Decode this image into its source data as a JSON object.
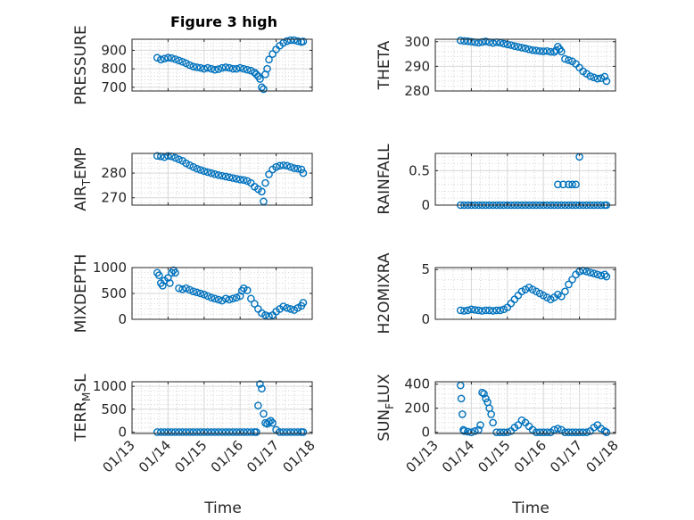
{
  "figure": {
    "title": "Figure 3 high",
    "xlabel": "Time",
    "marker_color": "#0072BD",
    "x_tick_labels": [
      "01/13",
      "01/14",
      "01/15",
      "01/16",
      "01/17",
      "01/18"
    ],
    "x_tick_days": [
      13,
      14,
      15,
      16,
      17,
      18
    ]
  },
  "chart_data": [
    {
      "type": "scatter",
      "ylabel": "PRESSURE",
      "ylabel_sub": "",
      "ylim": [
        680,
        960
      ],
      "yticks": [
        700,
        800,
        900
      ],
      "xlim": [
        13,
        18
      ],
      "x": [
        13.7,
        13.8,
        13.9,
        14.0,
        14.1,
        14.2,
        14.3,
        14.4,
        14.5,
        14.6,
        14.7,
        14.8,
        14.9,
        15.0,
        15.1,
        15.2,
        15.3,
        15.4,
        15.5,
        15.6,
        15.7,
        15.8,
        15.9,
        16.0,
        16.1,
        16.2,
        16.3,
        16.4,
        16.45,
        16.5,
        16.55,
        16.6,
        16.65,
        16.7,
        16.75,
        16.8,
        16.9,
        17.0,
        17.1,
        17.2,
        17.3,
        17.4,
        17.5,
        17.6,
        17.7,
        17.75
      ],
      "y": [
        860,
        850,
        855,
        860,
        858,
        852,
        845,
        838,
        830,
        820,
        812,
        808,
        805,
        800,
        805,
        800,
        795,
        798,
        805,
        808,
        805,
        800,
        800,
        805,
        800,
        795,
        790,
        780,
        770,
        760,
        745,
        700,
        690,
        770,
        800,
        850,
        880,
        905,
        925,
        940,
        950,
        955,
        955,
        950,
        945,
        948
      ]
    },
    {
      "type": "scatter",
      "ylabel": "THETA",
      "ylabel_sub": "",
      "ylim": [
        280,
        301
      ],
      "yticks": [
        280,
        290,
        300
      ],
      "xlim": [
        13,
        18
      ],
      "x": [
        13.7,
        13.8,
        13.9,
        14.0,
        14.1,
        14.2,
        14.3,
        14.4,
        14.5,
        14.6,
        14.7,
        14.8,
        14.9,
        15.0,
        15.1,
        15.2,
        15.3,
        15.4,
        15.5,
        15.6,
        15.7,
        15.8,
        15.9,
        16.0,
        16.1,
        16.2,
        16.3,
        16.35,
        16.4,
        16.45,
        16.5,
        16.6,
        16.7,
        16.8,
        16.9,
        17.0,
        17.1,
        17.2,
        17.3,
        17.4,
        17.5,
        17.6,
        17.7,
        17.75
      ],
      "y": [
        300.5,
        300.3,
        300.2,
        300.0,
        299.8,
        299.6,
        299.9,
        300.1,
        299.8,
        299.5,
        299.8,
        299.6,
        299.2,
        298.9,
        298.6,
        298.2,
        297.9,
        297.6,
        297.3,
        296.9,
        296.6,
        296.4,
        296.2,
        296.1,
        296.2,
        295.9,
        295.8,
        296.5,
        298.0,
        297.0,
        296.0,
        293.0,
        292.5,
        292.0,
        291.0,
        289.5,
        288.0,
        287.0,
        286.0,
        285.5,
        285.0,
        285.2,
        285.8,
        284.0
      ]
    },
    {
      "type": "scatter",
      "ylabel": "AIR",
      "ylabel_sub": "T",
      "ylabel_suffix": "EMP",
      "ylim": [
        267,
        288
      ],
      "yticks": [
        270,
        280
      ],
      "xlim": [
        13,
        18
      ],
      "x": [
        13.7,
        13.8,
        13.9,
        14.0,
        14.1,
        14.2,
        14.3,
        14.4,
        14.5,
        14.6,
        14.7,
        14.8,
        14.9,
        15.0,
        15.1,
        15.2,
        15.3,
        15.4,
        15.5,
        15.6,
        15.7,
        15.8,
        15.9,
        16.0,
        16.1,
        16.2,
        16.3,
        16.4,
        16.5,
        16.6,
        16.65,
        16.7,
        16.8,
        16.9,
        17.0,
        17.1,
        17.2,
        17.3,
        17.4,
        17.5,
        17.6,
        17.7,
        17.75
      ],
      "y": [
        287.0,
        286.8,
        286.5,
        287.0,
        286.8,
        286.2,
        285.6,
        285.0,
        284.0,
        283.2,
        282.5,
        281.8,
        281.3,
        280.8,
        280.4,
        280.0,
        279.6,
        279.2,
        278.9,
        278.6,
        278.3,
        278.0,
        277.7,
        277.4,
        277.2,
        276.8,
        276.0,
        274.5,
        273.5,
        272.5,
        268.5,
        276.0,
        279.5,
        281.5,
        282.5,
        283.0,
        283.2,
        283.0,
        282.5,
        282.0,
        281.8,
        281.5,
        280.0
      ]
    },
    {
      "type": "scatter",
      "ylabel": "RAINFALL",
      "ylabel_sub": "",
      "ylim": [
        0,
        0.75
      ],
      "yticks": [
        0,
        0.5
      ],
      "xlim": [
        13,
        18
      ],
      "x": [
        13.7,
        13.8,
        13.9,
        14.0,
        14.1,
        14.2,
        14.3,
        14.4,
        14.5,
        14.6,
        14.7,
        14.8,
        14.9,
        15.0,
        15.1,
        15.2,
        15.3,
        15.4,
        15.5,
        15.6,
        15.7,
        15.8,
        15.9,
        16.0,
        16.1,
        16.2,
        16.3,
        16.4,
        16.5,
        16.6,
        16.7,
        16.8,
        16.9,
        17.0,
        17.1,
        17.2,
        17.3,
        17.4,
        17.5,
        17.6,
        17.7,
        17.75,
        16.4,
        16.55,
        16.7,
        16.8,
        16.9,
        17.0
      ],
      "y": [
        0,
        0,
        0,
        0,
        0,
        0,
        0,
        0,
        0,
        0,
        0,
        0,
        0,
        0,
        0,
        0,
        0,
        0,
        0,
        0,
        0,
        0,
        0,
        0,
        0,
        0,
        0,
        0,
        0,
        0,
        0,
        0,
        0,
        0,
        0,
        0,
        0,
        0,
        0,
        0,
        0,
        0,
        0.3,
        0.3,
        0.3,
        0.3,
        0.3,
        0.7
      ]
    },
    {
      "type": "scatter",
      "ylabel": "MIXDEPTH",
      "ylabel_sub": "",
      "ylim": [
        0,
        1000
      ],
      "yticks": [
        0,
        500,
        1000
      ],
      "xlim": [
        13,
        18
      ],
      "x": [
        13.7,
        13.75,
        13.8,
        13.85,
        13.9,
        14.0,
        14.05,
        14.1,
        14.15,
        14.2,
        14.3,
        14.4,
        14.5,
        14.6,
        14.7,
        14.8,
        14.9,
        15.0,
        15.1,
        15.2,
        15.3,
        15.4,
        15.5,
        15.6,
        15.7,
        15.8,
        15.9,
        16.0,
        16.05,
        16.1,
        16.2,
        16.3,
        16.4,
        16.5,
        16.6,
        16.7,
        16.8,
        16.9,
        17.0,
        17.1,
        17.2,
        17.3,
        17.4,
        17.5,
        17.6,
        17.7,
        17.75
      ],
      "y": [
        900,
        850,
        700,
        650,
        750,
        800,
        700,
        900,
        950,
        900,
        600,
        580,
        600,
        570,
        540,
        520,
        500,
        480,
        450,
        420,
        400,
        380,
        360,
        400,
        380,
        400,
        420,
        450,
        550,
        600,
        560,
        400,
        300,
        200,
        120,
        80,
        60,
        80,
        150,
        200,
        250,
        220,
        200,
        180,
        220,
        260,
        320
      ]
    },
    {
      "type": "scatter",
      "ylabel": "H2OMIXRA",
      "ylabel_sub": "",
      "ylim": [
        0,
        5.2
      ],
      "yticks": [
        0,
        5
      ],
      "xlim": [
        13,
        18
      ],
      "x": [
        13.7,
        13.8,
        13.9,
        14.0,
        14.1,
        14.2,
        14.3,
        14.4,
        14.5,
        14.6,
        14.7,
        14.8,
        14.9,
        15.0,
        15.1,
        15.2,
        15.3,
        15.4,
        15.5,
        15.6,
        15.7,
        15.8,
        15.9,
        16.0,
        16.1,
        16.2,
        16.3,
        16.4,
        16.5,
        16.6,
        16.7,
        16.8,
        16.9,
        17.0,
        17.1,
        17.2,
        17.3,
        17.4,
        17.5,
        17.6,
        17.7,
        17.75
      ],
      "y": [
        0.9,
        0.85,
        0.9,
        1.0,
        0.95,
        0.9,
        0.85,
        0.9,
        0.9,
        0.85,
        0.9,
        0.9,
        1.0,
        1.2,
        1.6,
        2.0,
        2.4,
        2.8,
        3.0,
        3.2,
        3.0,
        2.8,
        2.6,
        2.4,
        2.2,
        2.0,
        2.2,
        2.5,
        2.3,
        2.8,
        3.5,
        4.0,
        4.5,
        4.8,
        4.9,
        4.8,
        4.7,
        4.6,
        4.5,
        4.4,
        4.5,
        4.3
      ]
    },
    {
      "type": "scatter",
      "ylabel": "TERR",
      "ylabel_sub": "M",
      "ylabel_suffix": "SL",
      "ylim": [
        -30,
        1100
      ],
      "yticks": [
        0,
        500,
        1000
      ],
      "xlim": [
        13,
        18
      ],
      "x": [
        13.7,
        13.8,
        13.9,
        14.0,
        14.1,
        14.2,
        14.3,
        14.4,
        14.5,
        14.6,
        14.7,
        14.8,
        14.9,
        15.0,
        15.1,
        15.2,
        15.3,
        15.4,
        15.5,
        15.6,
        15.7,
        15.8,
        15.9,
        16.0,
        16.1,
        16.2,
        16.3,
        16.4,
        16.45,
        16.5,
        16.55,
        16.6,
        16.65,
        16.7,
        16.75,
        16.8,
        16.85,
        16.9,
        17.0,
        17.1,
        17.2,
        17.3,
        17.4,
        17.5,
        17.6,
        17.7,
        17.75
      ],
      "y": [
        0,
        0,
        0,
        0,
        0,
        0,
        0,
        0,
        0,
        0,
        0,
        0,
        0,
        0,
        0,
        0,
        0,
        0,
        0,
        0,
        0,
        0,
        0,
        0,
        0,
        0,
        0,
        0,
        0,
        580,
        1050,
        950,
        400,
        200,
        180,
        220,
        250,
        200,
        50,
        0,
        0,
        0,
        0,
        0,
        0,
        0,
        0
      ]
    },
    {
      "type": "scatter",
      "ylabel": "SUN",
      "ylabel_sub": "F",
      "ylabel_suffix": "LUX",
      "ylim": [
        -10,
        420
      ],
      "yticks": [
        0,
        200,
        400
      ],
      "xlim": [
        13,
        18
      ],
      "x": [
        13.7,
        13.72,
        13.75,
        13.78,
        13.8,
        13.9,
        14.0,
        14.1,
        14.2,
        14.25,
        14.3,
        14.35,
        14.4,
        14.45,
        14.5,
        14.55,
        14.6,
        14.7,
        14.8,
        14.9,
        15.0,
        15.1,
        15.2,
        15.3,
        15.4,
        15.5,
        15.6,
        15.7,
        15.8,
        15.9,
        16.0,
        16.1,
        16.2,
        16.3,
        16.4,
        16.5,
        16.6,
        16.7,
        16.8,
        16.9,
        17.0,
        17.1,
        17.2,
        17.3,
        17.4,
        17.5,
        17.6,
        17.7,
        17.75
      ],
      "y": [
        390,
        280,
        150,
        20,
        10,
        5,
        0,
        10,
        20,
        60,
        330,
        320,
        280,
        250,
        200,
        150,
        80,
        0,
        0,
        0,
        0,
        10,
        40,
        60,
        100,
        80,
        50,
        20,
        0,
        0,
        0,
        0,
        0,
        20,
        30,
        20,
        0,
        0,
        0,
        0,
        0,
        0,
        0,
        10,
        40,
        60,
        30,
        10,
        0
      ]
    }
  ]
}
